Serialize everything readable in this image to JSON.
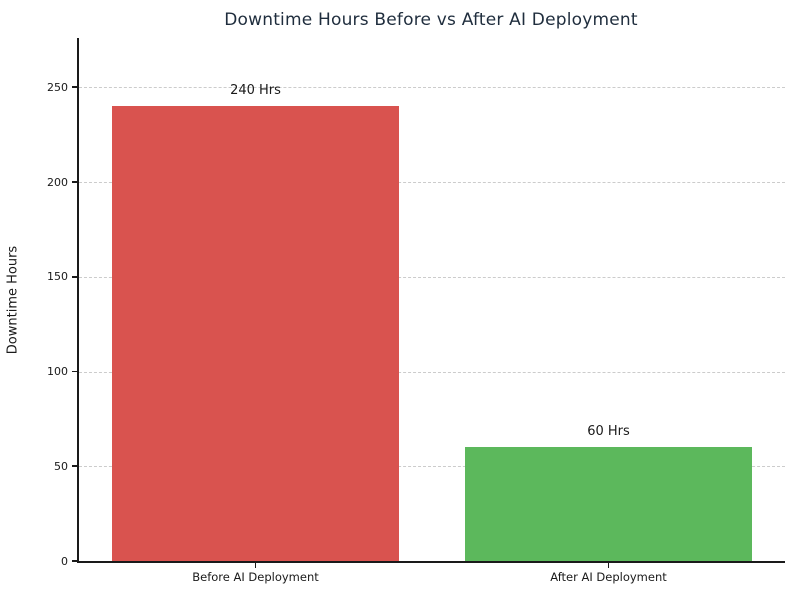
{
  "chart_data": {
    "type": "bar",
    "title": "Downtime Hours Before vs After AI Deployment",
    "ylabel": "Downtime Hours",
    "xlabel": "",
    "categories": [
      "Before AI Deployment",
      "After AI Deployment"
    ],
    "values": [
      240,
      60
    ],
    "bar_labels": [
      "240 Hrs",
      "60 Hrs"
    ],
    "bar_colors": [
      "#d9534f",
      "#5cb85c"
    ],
    "yticks": [
      0,
      50,
      100,
      150,
      200,
      250
    ],
    "ylim": [
      0,
      276
    ],
    "grid": "horizontal-dashed",
    "legend": "none"
  },
  "colors": {
    "background": "#ffffff",
    "title_text": "#1f2d3d",
    "axis_spine": "#1a1a1a",
    "tick_text": "#1a1a1a",
    "gridline": "#cccccc",
    "bar_before": "#d9534f",
    "bar_after": "#5cb85c"
  }
}
